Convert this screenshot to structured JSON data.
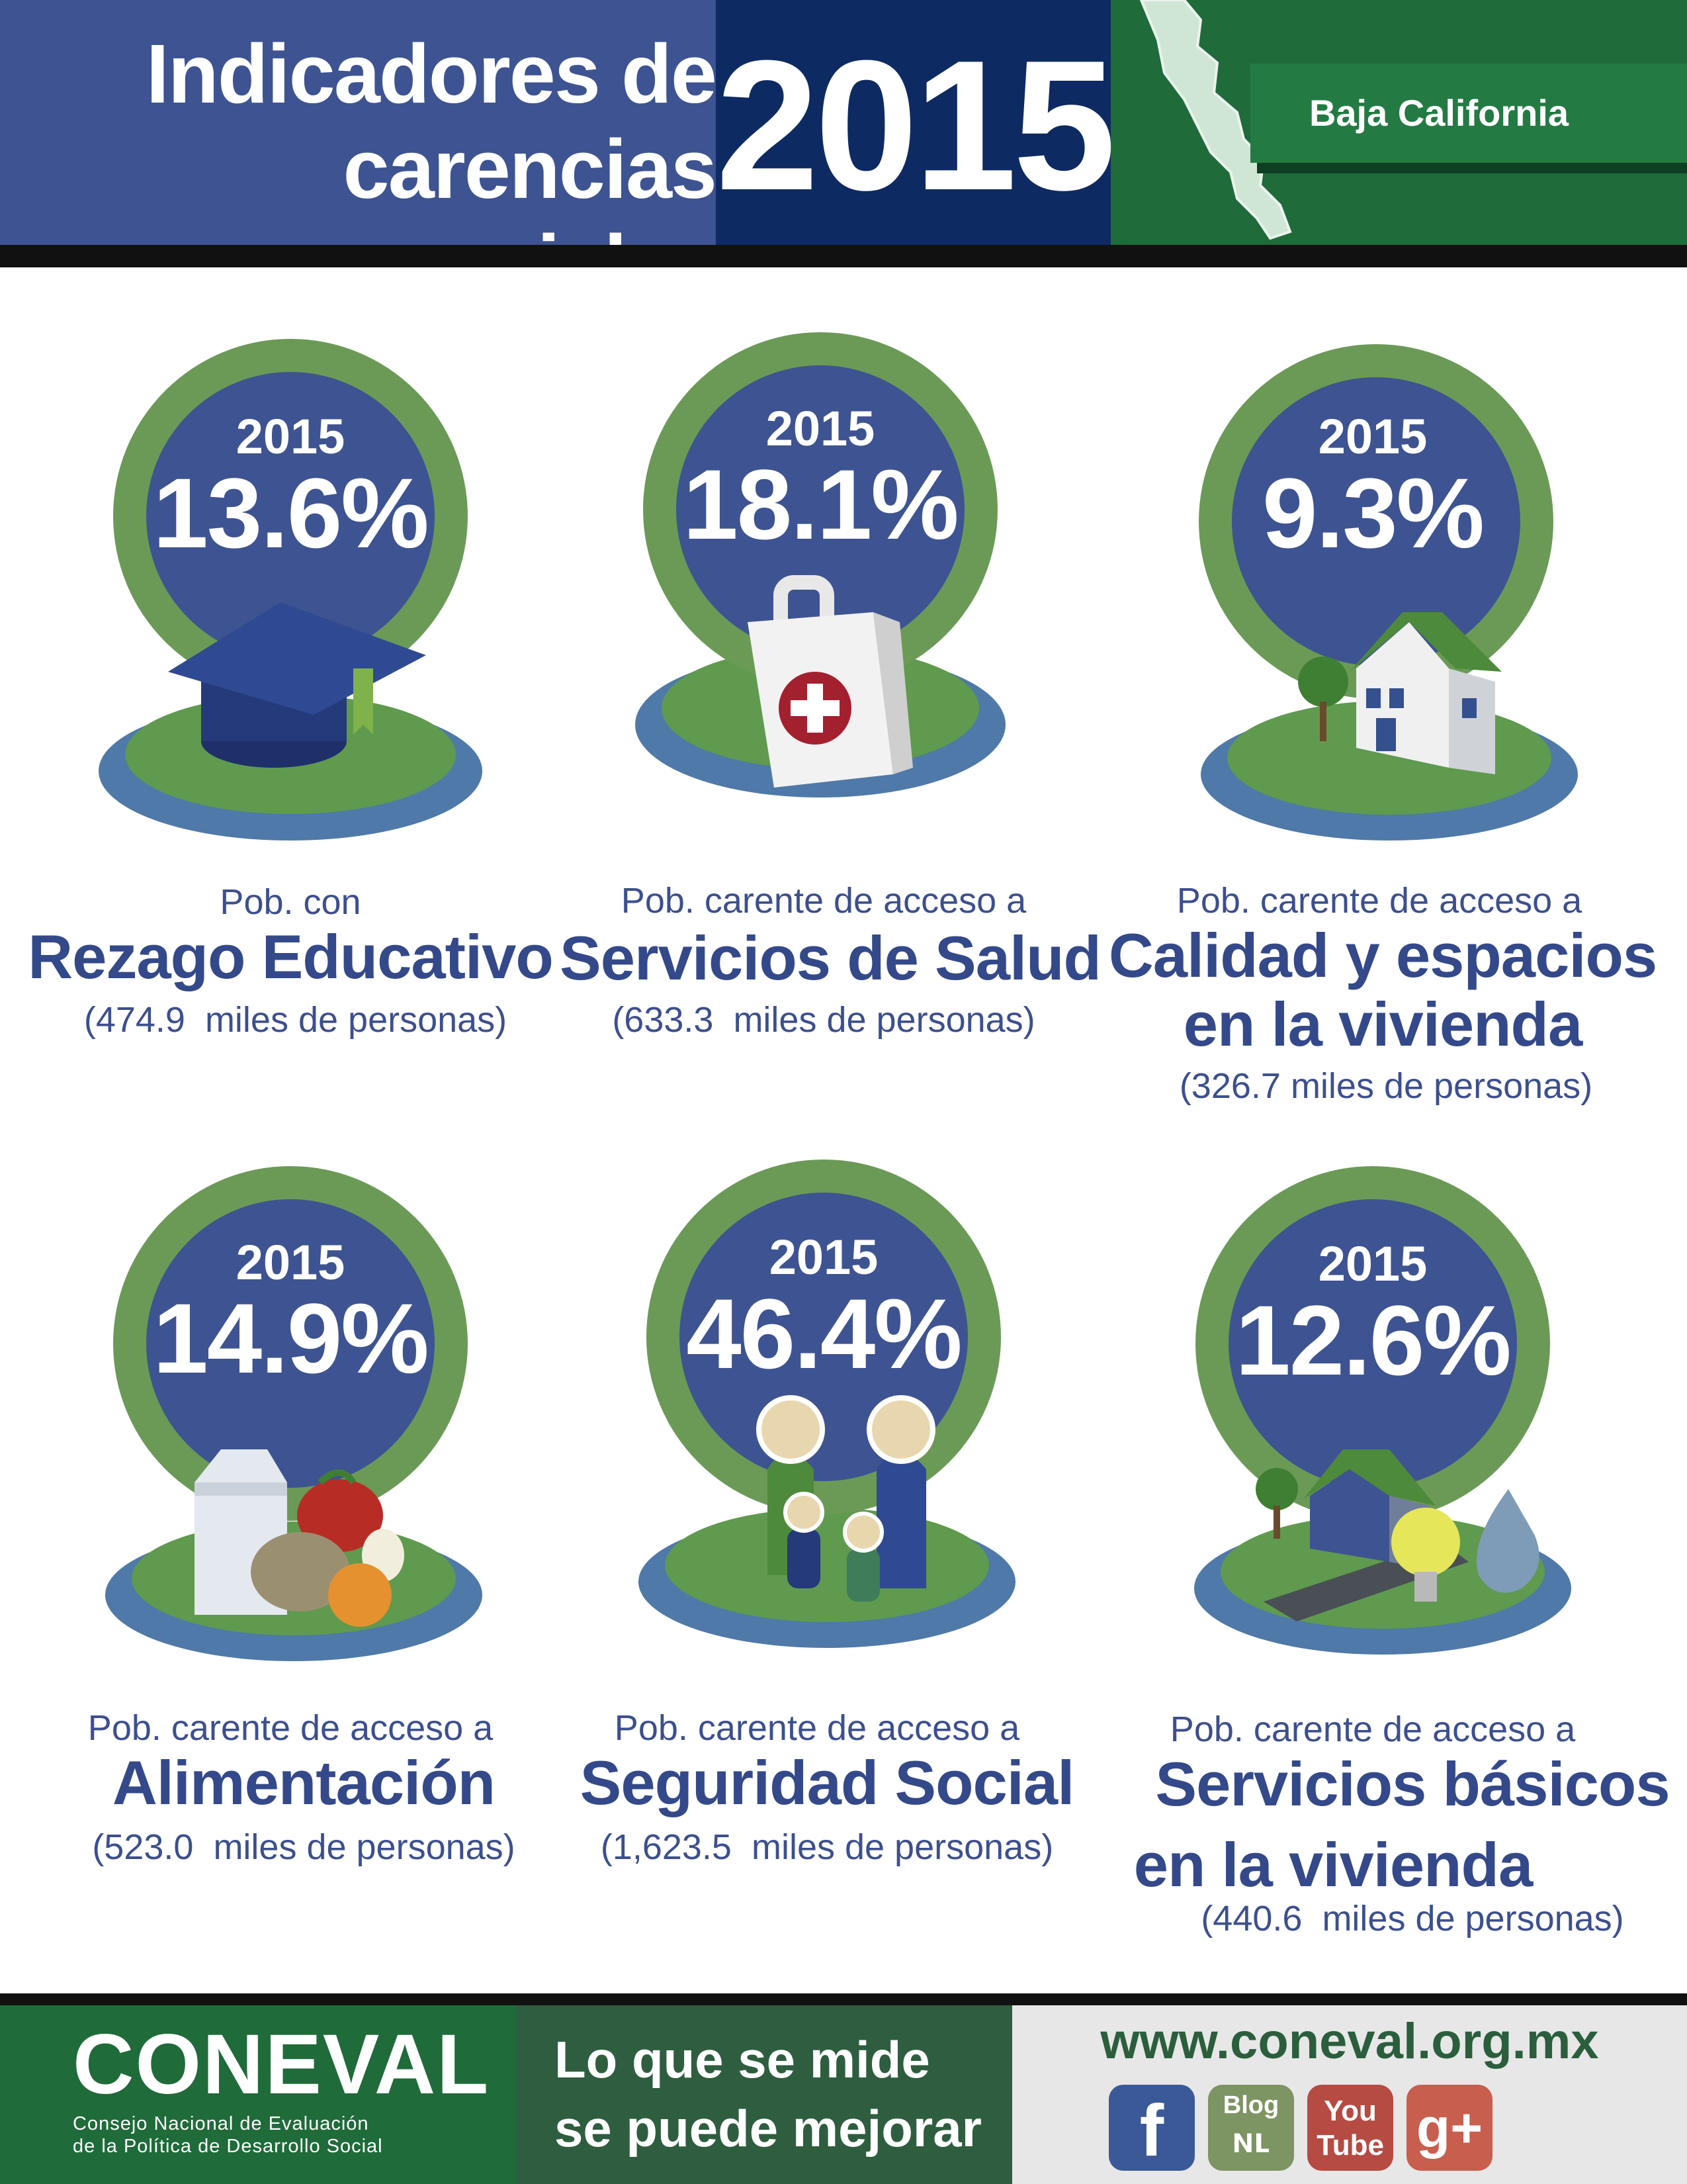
{
  "header": {
    "title_line1": "Indicadores de",
    "title_line2": "carencias sociales",
    "year": "2015",
    "state": "Baja California"
  },
  "colors": {
    "navy": "#3e5391",
    "dark_navy": "#0e2a63",
    "green": "#1f6b3a",
    "ring_green": "#6b9a57",
    "platform_blue": "#4f79a8",
    "text_blue": "#34498a"
  },
  "indicators": [
    {
      "year": "2015",
      "percent": "13.6%",
      "caption": "Pob. con",
      "title_lines": [
        "Rezago Educativo"
      ],
      "count": " (474.9  miles de personas)",
      "icon": "graduation-cap-icon"
    },
    {
      "year": "2015",
      "percent": "18.1%",
      "caption": "Pob. carente de acceso a",
      "title_lines": [
        "Servicios de Salud"
      ],
      "count": "(633.3  miles de personas)",
      "icon": "first-aid-bag-icon"
    },
    {
      "year": "2015",
      "percent": "9.3%",
      "caption": "Pob. carente de acceso a",
      "title_lines": [
        "Calidad y espacios",
        "en la vivienda"
      ],
      "count": "(326.7 miles de personas)",
      "icon": "house-icon"
    },
    {
      "year": "2015",
      "percent": "14.9%",
      "caption": "Pob. carente de acceso a",
      "title_lines": [
        "Alimentación"
      ],
      "count": "(523.0  miles de personas)",
      "icon": "food-icon"
    },
    {
      "year": "2015",
      "percent": "46.4%",
      "caption": "Pob. carente de acceso a",
      "title_lines": [
        "Seguridad Social"
      ],
      "count": "(1,623.5  miles de personas)",
      "icon": "family-icon"
    },
    {
      "year": "2015",
      "percent": "12.6%",
      "caption": "Pob. carente de acceso a",
      "title_lines": [
        "Servicios básicos",
        "en la vivienda"
      ],
      "count": "(440.6  miles de personas)",
      "icon": "house-services-icon"
    }
  ],
  "footer": {
    "logo": "CONEVAL",
    "org_line1": "Consejo Nacional de Evaluación",
    "org_line2": "de la Política de Desarrollo Social",
    "slogan_line1": "Lo que se mide",
    "slogan_line2": "se puede mejorar",
    "website": "www.coneval.org.mx",
    "social": [
      {
        "name": "facebook",
        "label": "f"
      },
      {
        "name": "blog",
        "label": "Blog"
      },
      {
        "name": "youtube",
        "label": "You Tube"
      },
      {
        "name": "google-plus",
        "label": "g+"
      }
    ]
  }
}
